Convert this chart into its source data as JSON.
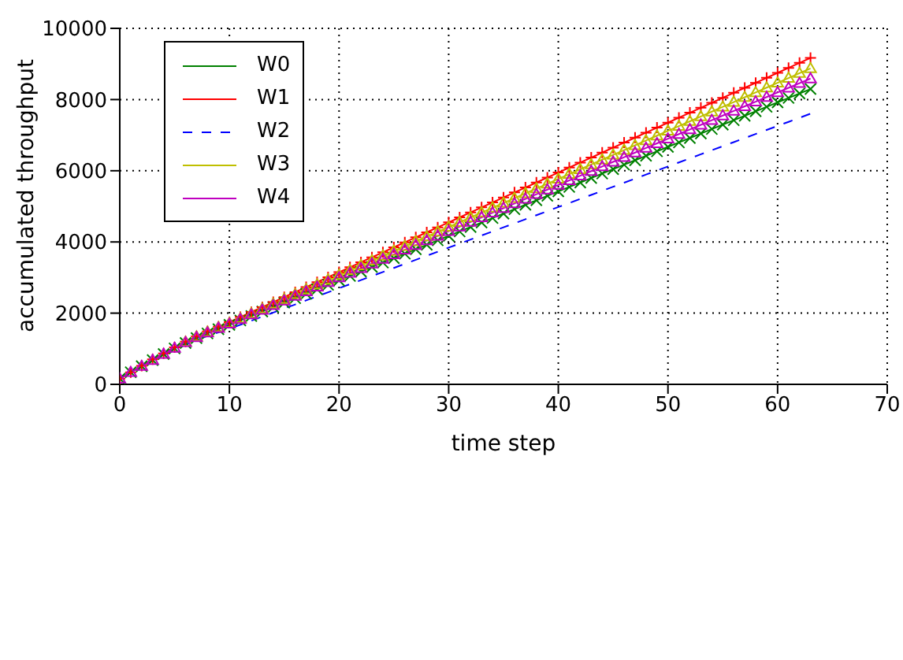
{
  "chart_data": {
    "type": "line",
    "xlabel": "time step",
    "ylabel": "accumulated throughput",
    "xlim": [
      0,
      70
    ],
    "xticks": [
      0,
      10,
      20,
      30,
      40,
      50,
      60,
      70
    ],
    "ylim": [
      0,
      10000
    ],
    "yticks": [
      0,
      2000,
      4000,
      6000,
      8000,
      10000
    ],
    "grid": true,
    "legend": "top left",
    "x": [
      0,
      1,
      2,
      3,
      4,
      5,
      6,
      7,
      8,
      9,
      10,
      11,
      12,
      13,
      14,
      15,
      16,
      17,
      18,
      19,
      20,
      21,
      22,
      23,
      24,
      25,
      26,
      27,
      28,
      29,
      30,
      31,
      32,
      33,
      34,
      35,
      36,
      37,
      38,
      39,
      40,
      41,
      42,
      43,
      44,
      45,
      46,
      47,
      48,
      49,
      50,
      51,
      52,
      53,
      54,
      55,
      56,
      57,
      58,
      59,
      60,
      61,
      62,
      63
    ],
    "series": [
      {
        "name": "W0",
        "color": "#008000",
        "marker": "cross",
        "line_style": "solid",
        "values": [
          160,
          340,
          510,
          680,
          850,
          1010,
          1160,
          1300,
          1430,
          1550,
          1670,
          1795,
          1920,
          2045,
          2170,
          2295,
          2420,
          2545,
          2670,
          2795,
          2920,
          3045,
          3170,
          3295,
          3420,
          3545,
          3670,
          3795,
          3920,
          4045,
          4170,
          4295,
          4420,
          4545,
          4670,
          4795,
          4920,
          5045,
          5170,
          5295,
          5420,
          5545,
          5670,
          5795,
          5920,
          6045,
          6170,
          6295,
          6420,
          6545,
          6670,
          6795,
          6920,
          7045,
          7170,
          7295,
          7420,
          7545,
          7670,
          7795,
          7920,
          8045,
          8170,
          8295
        ]
      },
      {
        "name": "W1",
        "color": "#ff0000",
        "marker": "plus",
        "line_style": "solid",
        "values": [
          160,
          340,
          520,
          700,
          870,
          1040,
          1200,
          1350,
          1490,
          1620,
          1750,
          1890,
          2030,
          2170,
          2310,
          2450,
          2590,
          2730,
          2870,
          3010,
          3150,
          3290,
          3430,
          3570,
          3710,
          3850,
          3990,
          4130,
          4270,
          4410,
          4550,
          4690,
          4830,
          4970,
          5110,
          5250,
          5390,
          5530,
          5670,
          5810,
          5950,
          6090,
          6230,
          6370,
          6510,
          6650,
          6790,
          6930,
          7070,
          7210,
          7350,
          7490,
          7630,
          7770,
          7910,
          8050,
          8190,
          8330,
          8470,
          8610,
          8750,
          8890,
          9030,
          9170
        ]
      },
      {
        "name": "W2",
        "color": "#0000ff",
        "marker": "none",
        "line_style": "dashed",
        "values": [
          null,
          null,
          null,
          null,
          820,
          970,
          1110,
          1240,
          1360,
          1460,
          1560,
          1674,
          1788,
          1902,
          2016,
          2130,
          2244,
          2358,
          2472,
          2586,
          2700,
          2814,
          2928,
          3042,
          3156,
          3270,
          3384,
          3498,
          3612,
          3726,
          3840,
          3954,
          4068,
          4182,
          4296,
          4410,
          4524,
          4638,
          4752,
          4866,
          4980,
          5094,
          5208,
          5322,
          5436,
          5550,
          5664,
          5778,
          5892,
          6006,
          6120,
          6234,
          6348,
          6462,
          6576,
          6690,
          6804,
          6918,
          7032,
          7146,
          7260,
          7374,
          7488,
          7602
        ]
      },
      {
        "name": "W3",
        "color": "#bfbf00",
        "marker": "triangle",
        "line_style": "solid",
        "values": [
          null,
          null,
          null,
          null,
          null,
          null,
          1190,
          1340,
          1470,
          1600,
          1720,
          1855,
          1990,
          2125,
          2260,
          2395,
          2530,
          2665,
          2800,
          2935,
          3070,
          3205,
          3340,
          3475,
          3610,
          3745,
          3880,
          4015,
          4150,
          4285,
          4420,
          4555,
          4690,
          4825,
          4960,
          5095,
          5230,
          5365,
          5500,
          5635,
          5770,
          5905,
          6040,
          6175,
          6310,
          6445,
          6580,
          6715,
          6850,
          6985,
          7120,
          7255,
          7390,
          7525,
          7660,
          7795,
          7930,
          8065,
          8200,
          8335,
          8470,
          8605,
          8740,
          8875
        ]
      },
      {
        "name": "W4",
        "color": "#bf00bf",
        "marker": "triangle",
        "line_style": "solid",
        "values": [
          160,
          340,
          510,
          680,
          850,
          1020,
          1180,
          1320,
          1450,
          1580,
          1700,
          1830,
          1960,
          2090,
          2220,
          2350,
          2480,
          2610,
          2740,
          2870,
          3000,
          3130,
          3260,
          3390,
          3520,
          3650,
          3780,
          3910,
          4040,
          4170,
          4300,
          4430,
          4560,
          4690,
          4820,
          4950,
          5080,
          5210,
          5340,
          5470,
          5600,
          5730,
          5860,
          5990,
          6120,
          6250,
          6380,
          6510,
          6640,
          6770,
          6900,
          7030,
          7160,
          7290,
          7420,
          7550,
          7680,
          7810,
          7940,
          8070,
          8200,
          8330,
          8460,
          8590
        ]
      }
    ]
  }
}
